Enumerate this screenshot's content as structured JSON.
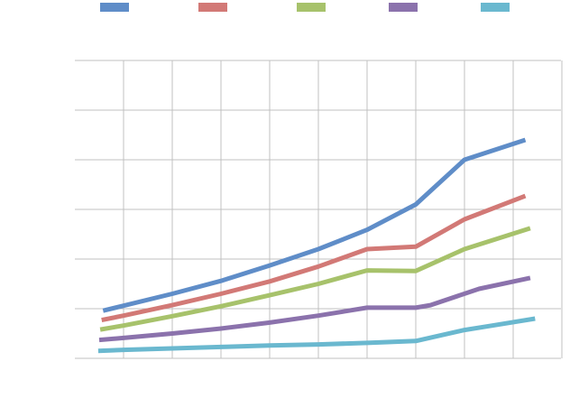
{
  "chart_data": {
    "type": "line",
    "title": "",
    "xlabel": "",
    "ylabel": "",
    "ylim": [
      0,
      6
    ],
    "grid": true,
    "legend_position": "top",
    "x": [
      -0.45,
      0,
      1,
      2,
      3,
      4,
      5,
      6,
      6.3,
      7,
      7.5,
      8,
      8.25,
      8.35,
      8.45
    ],
    "series": [
      {
        "name": "",
        "color": "#5f8dc8",
        "points": [
          [
            -0.42,
            0.96
          ],
          [
            0,
            1.06
          ],
          [
            1,
            1.3
          ],
          [
            2,
            1.56
          ],
          [
            3,
            1.87
          ],
          [
            4,
            2.2
          ],
          [
            5,
            2.59
          ],
          [
            6,
            3.1
          ],
          [
            7,
            4.0
          ],
          [
            8.25,
            4.4
          ]
        ]
      },
      {
        "name": "",
        "color": "#d27976",
        "points": [
          [
            -0.45,
            0.77
          ],
          [
            0,
            0.86
          ],
          [
            1,
            1.07
          ],
          [
            2,
            1.3
          ],
          [
            3,
            1.55
          ],
          [
            4,
            1.85
          ],
          [
            5,
            2.2
          ],
          [
            6,
            2.25
          ],
          [
            7,
            2.8
          ],
          [
            8.25,
            3.27
          ]
        ]
      },
      {
        "name": "",
        "color": "#a7c26b",
        "points": [
          [
            -0.48,
            0.58
          ],
          [
            0,
            0.66
          ],
          [
            1,
            0.85
          ],
          [
            2,
            1.05
          ],
          [
            3,
            1.27
          ],
          [
            4,
            1.5
          ],
          [
            5,
            1.77
          ],
          [
            6,
            1.76
          ],
          [
            7,
            2.2
          ],
          [
            8.35,
            2.62
          ]
        ]
      },
      {
        "name": "",
        "color": "#8b72ac",
        "points": [
          [
            -0.5,
            0.37
          ],
          [
            0,
            0.41
          ],
          [
            1,
            0.5
          ],
          [
            2,
            0.6
          ],
          [
            3,
            0.72
          ],
          [
            4,
            0.86
          ],
          [
            5,
            1.02
          ],
          [
            6,
            1.02
          ],
          [
            6.3,
            1.07
          ],
          [
            7.3,
            1.4
          ],
          [
            8.35,
            1.62
          ]
        ]
      },
      {
        "name": "",
        "color": "#6ab8cf",
        "points": [
          [
            -0.52,
            0.15
          ],
          [
            0,
            0.17
          ],
          [
            1,
            0.2
          ],
          [
            2,
            0.23
          ],
          [
            3,
            0.26
          ],
          [
            4,
            0.28
          ],
          [
            5,
            0.31
          ],
          [
            6,
            0.35
          ],
          [
            7,
            0.57
          ],
          [
            7.5,
            0.65
          ],
          [
            8.45,
            0.8
          ]
        ]
      }
    ]
  }
}
